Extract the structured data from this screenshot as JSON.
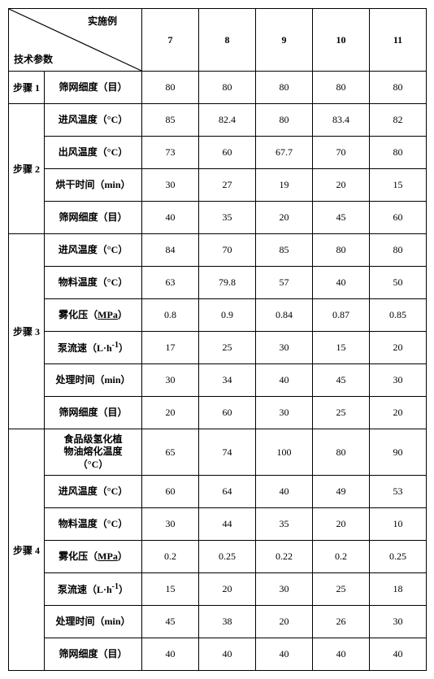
{
  "header": {
    "diag_top": "实施例",
    "diag_bottom": "技术参数",
    "cols": [
      "7",
      "8",
      "9",
      "10",
      "11"
    ]
  },
  "steps": [
    {
      "name": "步骤 1",
      "rows": [
        {
          "param_html": "筛网细度（目）",
          "vals": [
            "80",
            "80",
            "80",
            "80",
            "80"
          ]
        }
      ]
    },
    {
      "name": "步骤 2",
      "rows": [
        {
          "param_html": "进风温度（°C）",
          "vals": [
            "85",
            "82.4",
            "80",
            "83.4",
            "82"
          ]
        },
        {
          "param_html": "出风温度（°C）",
          "vals": [
            "73",
            "60",
            "67.7",
            "70",
            "80"
          ]
        },
        {
          "param_html": "烘干时间（min）",
          "vals": [
            "30",
            "27",
            "19",
            "20",
            "15"
          ]
        },
        {
          "param_html": "筛网细度（目）",
          "vals": [
            "40",
            "35",
            "20",
            "45",
            "60"
          ]
        }
      ]
    },
    {
      "name": "步骤 3",
      "rows": [
        {
          "param_html": "进风温度（°C）",
          "vals": [
            "84",
            "70",
            "85",
            "80",
            "80"
          ]
        },
        {
          "param_html": "物料温度（°C）",
          "vals": [
            "63",
            "79.8",
            "57",
            "40",
            "50"
          ]
        },
        {
          "param_html": "雾化压（<span class=\"underline\">MPa</span>）",
          "vals": [
            "0.8",
            "0.9",
            "0.84",
            "0.87",
            "0.85"
          ]
        },
        {
          "param_html": "泵流速（L·h<sup>-1</sup>）",
          "vals": [
            "17",
            "25",
            "30",
            "15",
            "20"
          ]
        },
        {
          "param_html": "处理时间（min）",
          "vals": [
            "30",
            "34",
            "40",
            "45",
            "30"
          ]
        },
        {
          "param_html": "筛网细度（目）",
          "vals": [
            "20",
            "60",
            "30",
            "25",
            "20"
          ]
        }
      ]
    },
    {
      "name": "步骤 4",
      "rows": [
        {
          "param_html": "食品级氢化植<br>物油熔化温度<br>（°C）",
          "vals": [
            "65",
            "74",
            "100",
            "80",
            "90"
          ],
          "tall": true
        },
        {
          "param_html": "进风温度（°C）",
          "vals": [
            "60",
            "64",
            "40",
            "49",
            "53"
          ]
        },
        {
          "param_html": "物料温度（°C）",
          "vals": [
            "30",
            "44",
            "35",
            "20",
            "10"
          ]
        },
        {
          "param_html": "雾化压（<span class=\"underline\">MPa</span>）",
          "vals": [
            "0.2",
            "0.25",
            "0.22",
            "0.2",
            "0.25"
          ]
        },
        {
          "param_html": "泵流速（L·h<sup>-1</sup>）",
          "vals": [
            "15",
            "20",
            "30",
            "25",
            "18"
          ]
        },
        {
          "param_html": "处理时间（min）",
          "vals": [
            "45",
            "38",
            "20",
            "26",
            "30"
          ]
        },
        {
          "param_html": "筛网细度（目）",
          "vals": [
            "40",
            "40",
            "40",
            "40",
            "40"
          ]
        }
      ]
    }
  ]
}
